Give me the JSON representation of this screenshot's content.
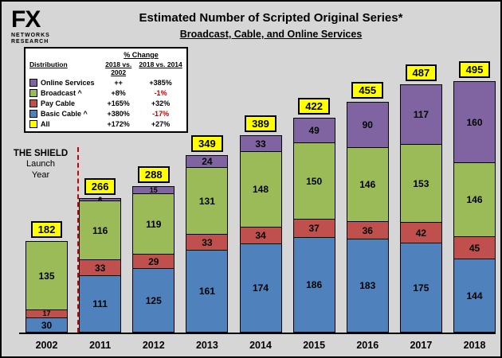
{
  "logo": {
    "fx": "FX",
    "line1": "NETWORKS",
    "line2": "RESEARCH"
  },
  "header": {
    "title": "Estimated Number of Scripted Original Series*",
    "subtitle": "Broadcast, Cable, and Online Services"
  },
  "legend": {
    "group_header": "% Change",
    "col_label": "Distribution",
    "col1": "2018 vs. 2002",
    "col2": "2018 vs. 2014",
    "rows": [
      {
        "label": "Online Services",
        "color": "#8064A2",
        "v1": "++",
        "v2": "+385%"
      },
      {
        "label": "Broadcast ^",
        "color": "#9BBB59",
        "v1": "+8%",
        "v2": "-1%"
      },
      {
        "label": "Pay Cable",
        "color": "#C0504D",
        "v1": "+165%",
        "v2": "+32%"
      },
      {
        "label": "Basic Cable ^",
        "color": "#4F81BD",
        "v1": "+380%",
        "v2": "-17%"
      },
      {
        "label": "All",
        "color": "#FFFF00",
        "v1": "+172%",
        "v2": "+27%"
      }
    ]
  },
  "annotation": {
    "line1": "THE SHIELD",
    "line2": "Launch",
    "line3": "Year"
  },
  "chart_data": {
    "type": "bar",
    "stacked": true,
    "categories": [
      "2002",
      "2011",
      "2012",
      "2013",
      "2014",
      "2015",
      "2016",
      "2017",
      "2018"
    ],
    "series": [
      {
        "name": "Basic Cable",
        "color": "#4F81BD",
        "values": [
          30,
          111,
          125,
          161,
          174,
          186,
          183,
          175,
          144
        ]
      },
      {
        "name": "Pay Cable",
        "color": "#C0504D",
        "values": [
          17,
          33,
          29,
          33,
          34,
          37,
          36,
          42,
          45
        ]
      },
      {
        "name": "Broadcast",
        "color": "#9BBB59",
        "values": [
          135,
          116,
          119,
          131,
          148,
          150,
          146,
          153,
          146
        ]
      },
      {
        "name": "Online Services",
        "color": "#8064A2",
        "values": [
          0,
          6,
          15,
          24,
          33,
          49,
          90,
          117,
          160
        ]
      }
    ],
    "totals": [
      182,
      266,
      288,
      349,
      389,
      422,
      455,
      487,
      495
    ],
    "total_box_color": "#FFFF00",
    "title": "Estimated Number of Scripted Original Series*",
    "xlabel": "",
    "ylabel": "",
    "ylim": [
      0,
      495
    ],
    "grid": false,
    "legend_position": "top-left"
  }
}
